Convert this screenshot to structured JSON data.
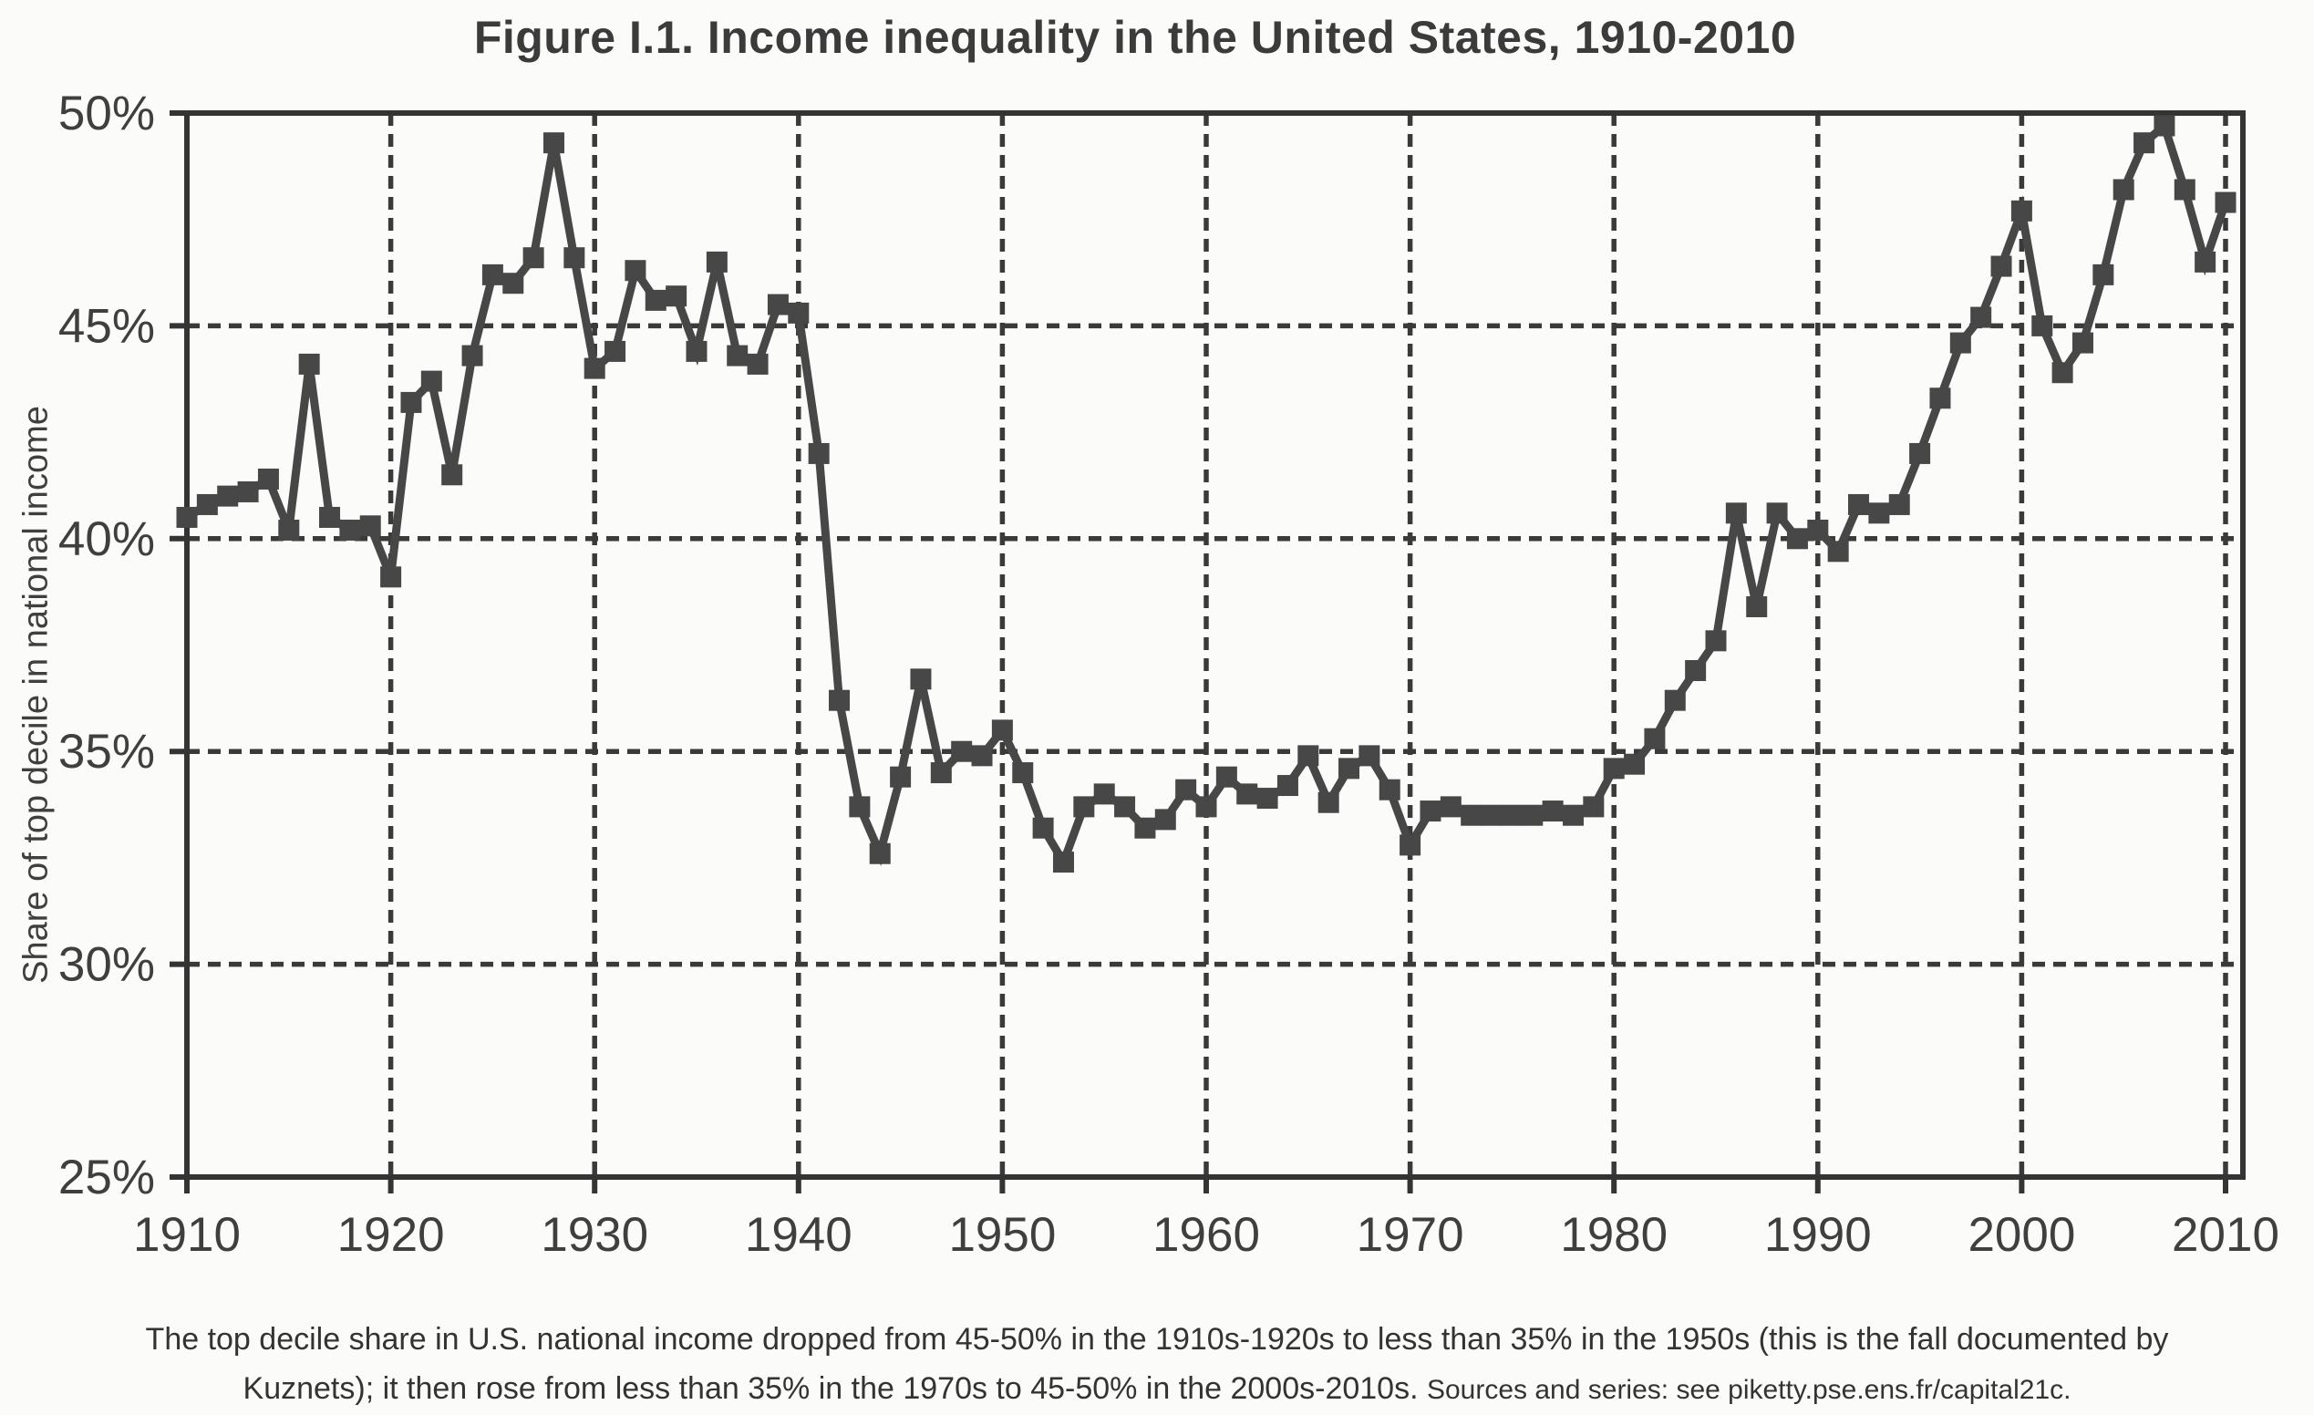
{
  "title": "Figure I.1. Income inequality in the United States, 1910-2010",
  "y_axis_label": "Share of top decile in national income",
  "caption": {
    "line1": "The top decile share in U.S. national income dropped from 45-50% in the 1910s-1920s to less than 35% in the 1950s (this is the fall documented by",
    "line2_main": "Kuznets); it then rose from less than 35% in the 1970s to 45-50% in the 2000s-2010s.",
    "line2_sources": "Sources and series: see piketty.pse.ens.fr/capital21c."
  },
  "colors": {
    "ink": "#474747",
    "grid": "#3a3a3a",
    "axis": "#343434",
    "text": "#3f3f3f",
    "background": "#fbfbf9"
  },
  "chart_data": {
    "type": "line",
    "title": "Figure I.1. Income inequality in the United States, 1910-2010",
    "xlabel": "",
    "ylabel": "Share of top decile in national income",
    "xlim": [
      1910,
      2010
    ],
    "ylim": [
      25,
      50
    ],
    "x_frequency": "annual",
    "x_start": 1910,
    "x_step": 1,
    "x_ticks": [
      1910,
      1920,
      1930,
      1940,
      1950,
      1960,
      1970,
      1980,
      1990,
      2000,
      2010
    ],
    "y_ticks": [
      {
        "value": 50,
        "label": "50%"
      },
      {
        "value": 45,
        "label": "45%"
      },
      {
        "value": 40,
        "label": "40%"
      },
      {
        "value": 35,
        "label": "35%"
      },
      {
        "value": 30,
        "label": "30%"
      },
      {
        "value": 25,
        "label": "25%"
      }
    ],
    "grid": "dashed, both axes",
    "legend": "none",
    "marker": "square",
    "series": [
      {
        "name": "Share of top decile in national income",
        "values": [
          40.5,
          40.8,
          41.0,
          41.1,
          41.4,
          40.2,
          44.1,
          40.5,
          40.2,
          40.3,
          39.1,
          43.2,
          43.7,
          41.5,
          44.3,
          46.2,
          46.0,
          46.6,
          49.3,
          46.6,
          44.0,
          44.4,
          46.3,
          45.6,
          45.7,
          44.4,
          46.5,
          44.3,
          44.1,
          45.5,
          45.3,
          42.0,
          36.2,
          33.7,
          32.6,
          34.4,
          36.7,
          34.5,
          35.0,
          34.9,
          35.5,
          34.5,
          33.2,
          32.4,
          33.7,
          34.0,
          33.7,
          33.2,
          33.4,
          34.1,
          33.7,
          34.4,
          34.0,
          33.9,
          34.2,
          34.9,
          33.8,
          34.6,
          34.9,
          34.1,
          32.8,
          33.6,
          33.7,
          33.5,
          33.5,
          33.5,
          33.5,
          33.6,
          33.5,
          33.7,
          34.6,
          34.7,
          35.3,
          36.2,
          36.9,
          37.6,
          40.6,
          38.4,
          40.6,
          40.0,
          40.2,
          39.7,
          40.8,
          40.6,
          40.8,
          42.0,
          43.3,
          44.6,
          45.2,
          46.4,
          47.7,
          45.0,
          43.9,
          44.6,
          46.2,
          48.2,
          49.3,
          49.7,
          48.2,
          46.5,
          47.9
        ]
      }
    ]
  }
}
